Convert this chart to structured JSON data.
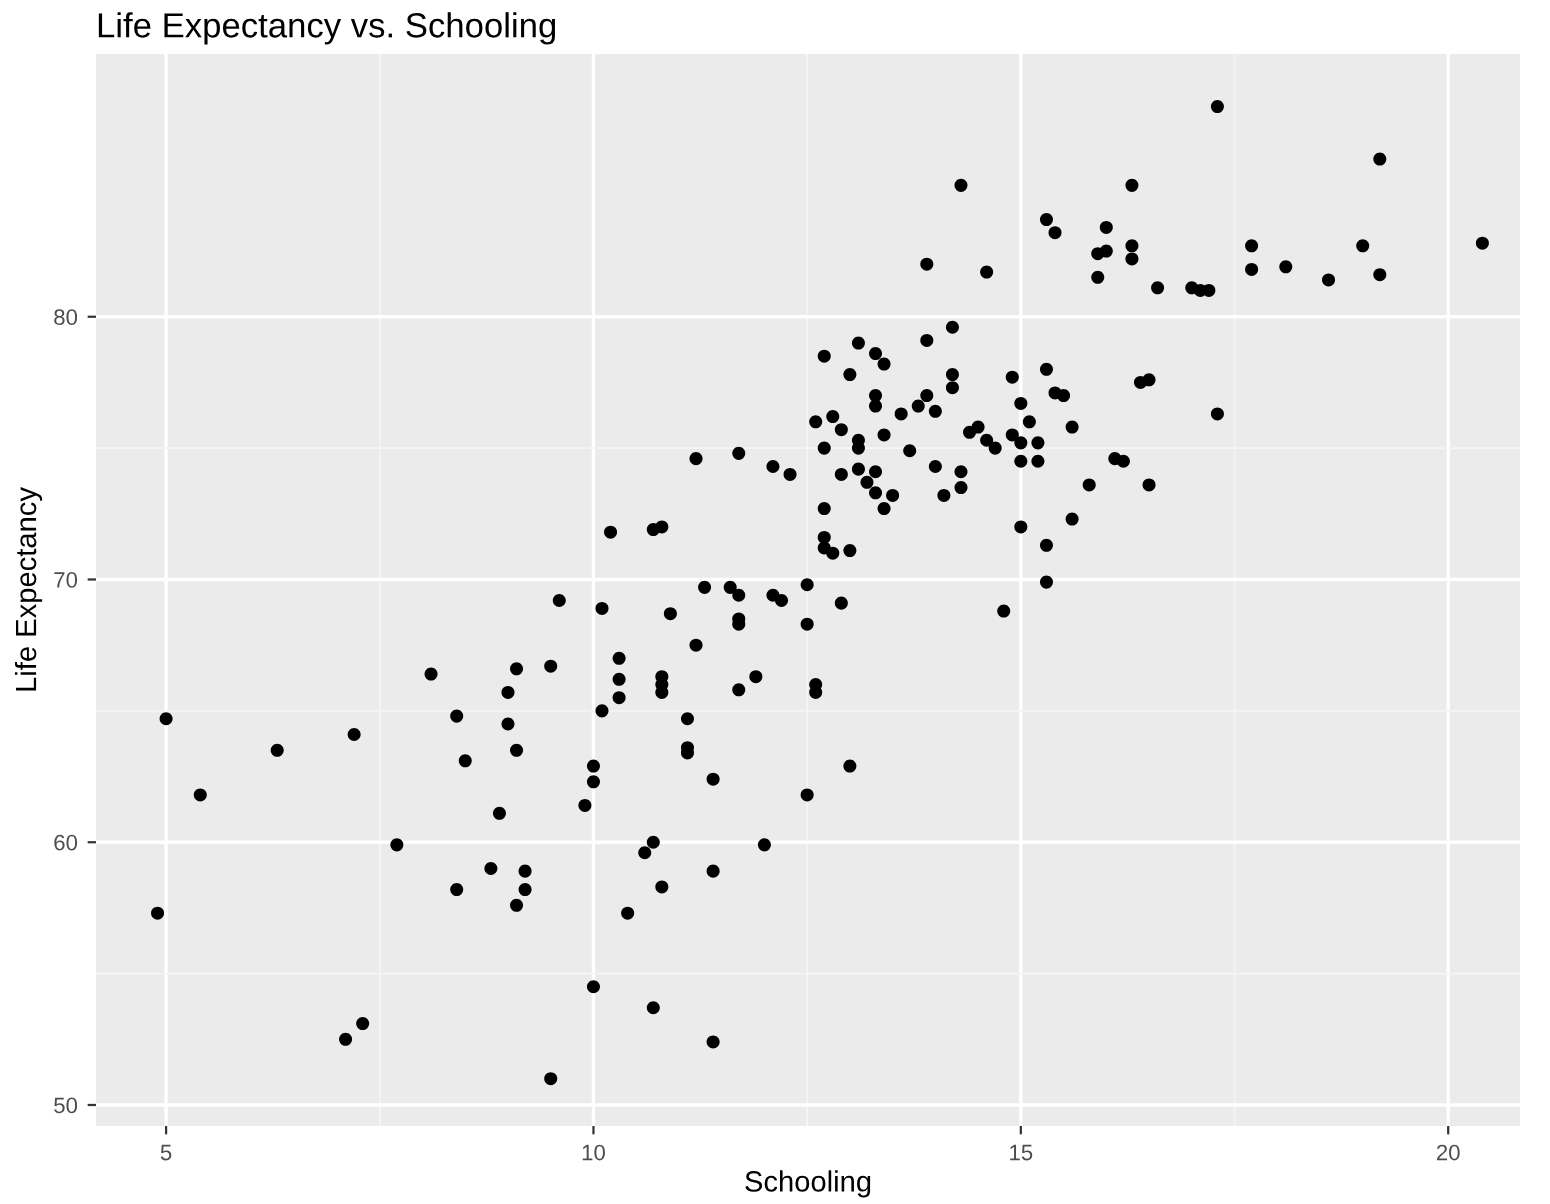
{
  "chart_data": {
    "type": "scatter",
    "title": "Life Expectancy vs. Schooling",
    "xlabel": "Schooling",
    "ylabel": "Life Expectancy",
    "xlim": [
      4.18,
      20.84
    ],
    "ylim": [
      49.2,
      90
    ],
    "xticks": [
      5,
      10,
      15,
      20
    ],
    "yticks": [
      50,
      60,
      70,
      80
    ],
    "grid": true,
    "marker": "circle",
    "series": [
      {
        "color": "#000000",
        "x": [
          4.9,
          5.0,
          5.4,
          6.3,
          7.1,
          7.2,
          7.3,
          7.7,
          8.1,
          8.4,
          8.4,
          8.5,
          8.8,
          8.9,
          9.0,
          9.0,
          9.1,
          9.1,
          9.1,
          9.2,
          9.2,
          9.5,
          9.5,
          9.6,
          9.9,
          10.0,
          10.0,
          10.0,
          10.1,
          10.1,
          10.2,
          10.3,
          10.3,
          10.3,
          10.4,
          10.6,
          10.7,
          10.7,
          10.7,
          10.8,
          10.8,
          10.8,
          10.8,
          10.8,
          10.9,
          11.1,
          11.1,
          11.1,
          11.2,
          11.2,
          11.3,
          11.4,
          11.4,
          11.4,
          11.6,
          11.7,
          11.7,
          11.7,
          11.7,
          11.7,
          11.9,
          12.0,
          12.1,
          12.1,
          12.2,
          12.3,
          12.5,
          12.5,
          12.5,
          12.6,
          12.6,
          12.6,
          12.7,
          12.7,
          12.7,
          12.7,
          12.7,
          12.8,
          12.8,
          12.9,
          12.9,
          12.9,
          13.0,
          13.0,
          13.0,
          13.1,
          13.1,
          13.1,
          13.1,
          13.2,
          13.3,
          13.3,
          13.3,
          13.3,
          13.3,
          13.4,
          13.4,
          13.4,
          13.5,
          13.6,
          13.7,
          13.8,
          13.9,
          13.9,
          13.9,
          14.0,
          14.0,
          14.1,
          14.2,
          14.2,
          14.2,
          14.3,
          14.3,
          14.3,
          14.4,
          14.5,
          14.6,
          14.6,
          14.7,
          14.8,
          14.9,
          14.9,
          15.0,
          15.0,
          15.0,
          15.0,
          15.1,
          15.2,
          15.2,
          15.3,
          15.3,
          15.3,
          15.3,
          15.4,
          15.4,
          15.5,
          15.6,
          15.6,
          15.8,
          15.9,
          15.9,
          16.0,
          16.0,
          16.1,
          16.2,
          16.3,
          16.3,
          16.3,
          16.4,
          16.5,
          16.5,
          16.6,
          17.0,
          17.1,
          17.2,
          17.3,
          17.3,
          17.7,
          17.7,
          18.1,
          18.6,
          19.0,
          19.2,
          19.2,
          20.4
        ],
        "values": [
          57.3,
          64.7,
          61.8,
          63.5,
          52.5,
          64.1,
          53.1,
          59.9,
          66.4,
          64.8,
          58.2,
          63.1,
          59.0,
          61.1,
          65.7,
          64.5,
          66.6,
          63.5,
          57.6,
          58.9,
          58.2,
          66.7,
          51.0,
          69.2,
          61.4,
          62.9,
          62.3,
          54.5,
          68.9,
          65.0,
          71.8,
          67.0,
          66.2,
          65.5,
          57.3,
          59.6,
          60.0,
          53.7,
          71.9,
          72.0,
          66.3,
          66.0,
          65.7,
          58.3,
          68.7,
          64.7,
          63.6,
          63.4,
          74.6,
          67.5,
          69.7,
          62.4,
          58.9,
          52.4,
          69.7,
          68.3,
          68.5,
          74.8,
          69.4,
          65.8,
          66.3,
          59.9,
          74.3,
          69.4,
          69.2,
          74.0,
          68.3,
          61.8,
          69.8,
          76.0,
          66.0,
          65.7,
          78.5,
          75.0,
          72.7,
          71.6,
          71.2,
          76.2,
          71.0,
          75.7,
          74.0,
          69.1,
          77.8,
          71.1,
          62.9,
          79.0,
          75.3,
          75.0,
          74.2,
          73.7,
          78.6,
          77.0,
          76.6,
          73.3,
          74.1,
          78.2,
          75.5,
          72.7,
          73.2,
          76.3,
          74.9,
          76.6,
          82.0,
          79.1,
          77.0,
          76.4,
          74.3,
          73.2,
          79.6,
          77.8,
          77.3,
          85.0,
          74.1,
          73.5,
          75.6,
          75.8,
          81.7,
          75.3,
          75.0,
          68.8,
          77.7,
          75.5,
          72.0,
          74.5,
          75.2,
          76.7,
          76.0,
          75.2,
          74.5,
          83.7,
          78.0,
          71.3,
          69.9,
          83.2,
          77.1,
          77.0,
          72.3,
          75.8,
          73.6,
          82.4,
          81.5,
          83.4,
          82.5,
          74.6,
          74.5,
          85.0,
          82.7,
          82.2,
          77.5,
          77.6,
          73.6,
          81.1,
          81.1,
          81.0,
          81.0,
          88.0,
          76.3,
          82.7,
          81.8,
          81.9,
          81.4,
          82.7,
          86.0,
          81.6,
          82.8
        ]
      }
    ]
  }
}
